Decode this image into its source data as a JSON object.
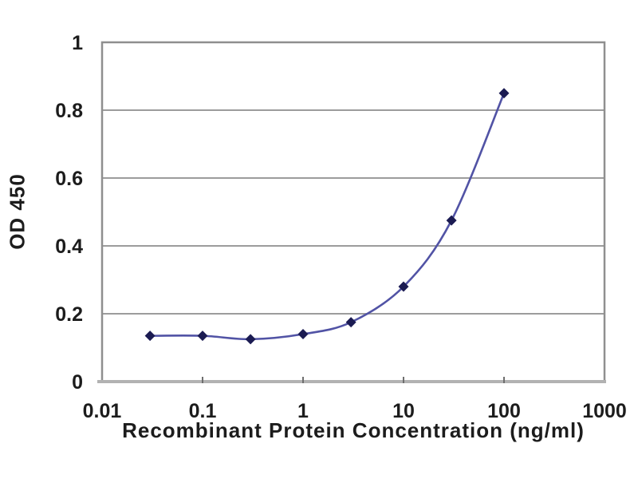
{
  "chart_data": {
    "type": "line",
    "title": "",
    "xlabel": "Recombinant Protein Concentration (ng/ml)",
    "ylabel": "OD 450",
    "x_scale": "log",
    "xlim": [
      0.01,
      1000
    ],
    "ylim": [
      0,
      1
    ],
    "x_tick_values": [
      0.01,
      0.1,
      1,
      10,
      100,
      1000
    ],
    "x_tick_labels": [
      "0.01",
      "0.1",
      "1",
      "10",
      "100",
      "1000"
    ],
    "y_tick_values": [
      0,
      0.2,
      0.4,
      0.6,
      0.8,
      1
    ],
    "y_tick_labels": [
      "0",
      "0.2",
      "0.4",
      "0.6",
      "0.8",
      "1"
    ],
    "grid": "horizontal",
    "legend": "none",
    "series": [
      {
        "name": "OD 450",
        "marker": "diamond",
        "x": [
          0.03,
          0.1,
          0.3,
          1,
          3,
          10,
          30,
          100
        ],
        "values": [
          0.135,
          0.135,
          0.125,
          0.14,
          0.175,
          0.28,
          0.475,
          0.85
        ]
      }
    ],
    "colors": {
      "line": "#5153a5",
      "marker": "#1b1b52",
      "gridline": "#9c9c9c",
      "frame": "#8f8f8f",
      "axis_line": "#b2b2b2",
      "tick": "#6e6e6e",
      "text": "#1c1c1c"
    }
  }
}
